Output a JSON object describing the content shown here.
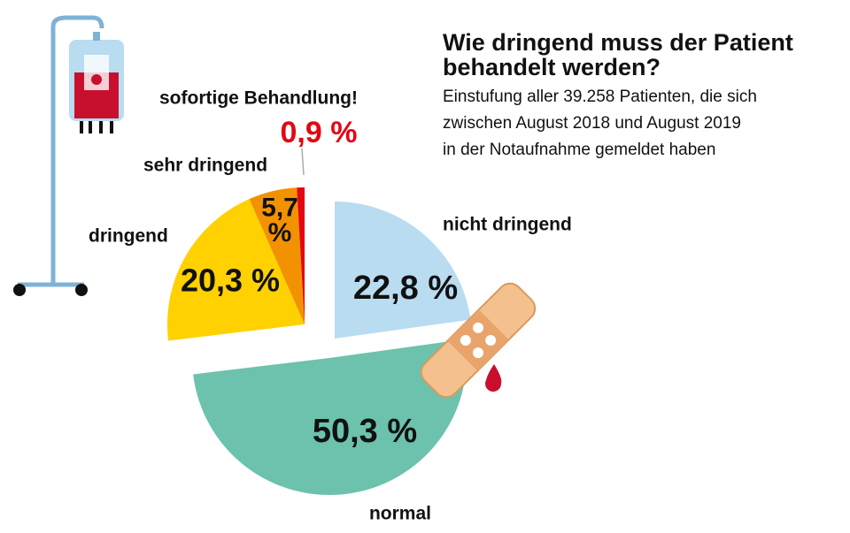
{
  "chart_data": {
    "type": "pie",
    "title": [
      "Wie dringend muss der Patient",
      "behandelt werden?"
    ],
    "subtitle": [
      "Einstufung aller 39.258 Patienten, die sich",
      "zwischen August 2018 und August 2019",
      "in der Notaufnahme gemeldet haben"
    ],
    "categories": [
      "nicht dringend",
      "normal",
      "dringend",
      "sehr dringend",
      "sofortige Behandlung!"
    ],
    "values": [
      22.8,
      50.3,
      20.3,
      5.7,
      0.9
    ],
    "value_labels": [
      "22,8 %",
      "50,3 %",
      "20,3 %",
      "5,7 %",
      "0,9 %"
    ],
    "colors": [
      "#b9dcf1",
      "#6cc2ad",
      "#ffd100",
      "#f39200",
      "#e30613"
    ]
  }
}
